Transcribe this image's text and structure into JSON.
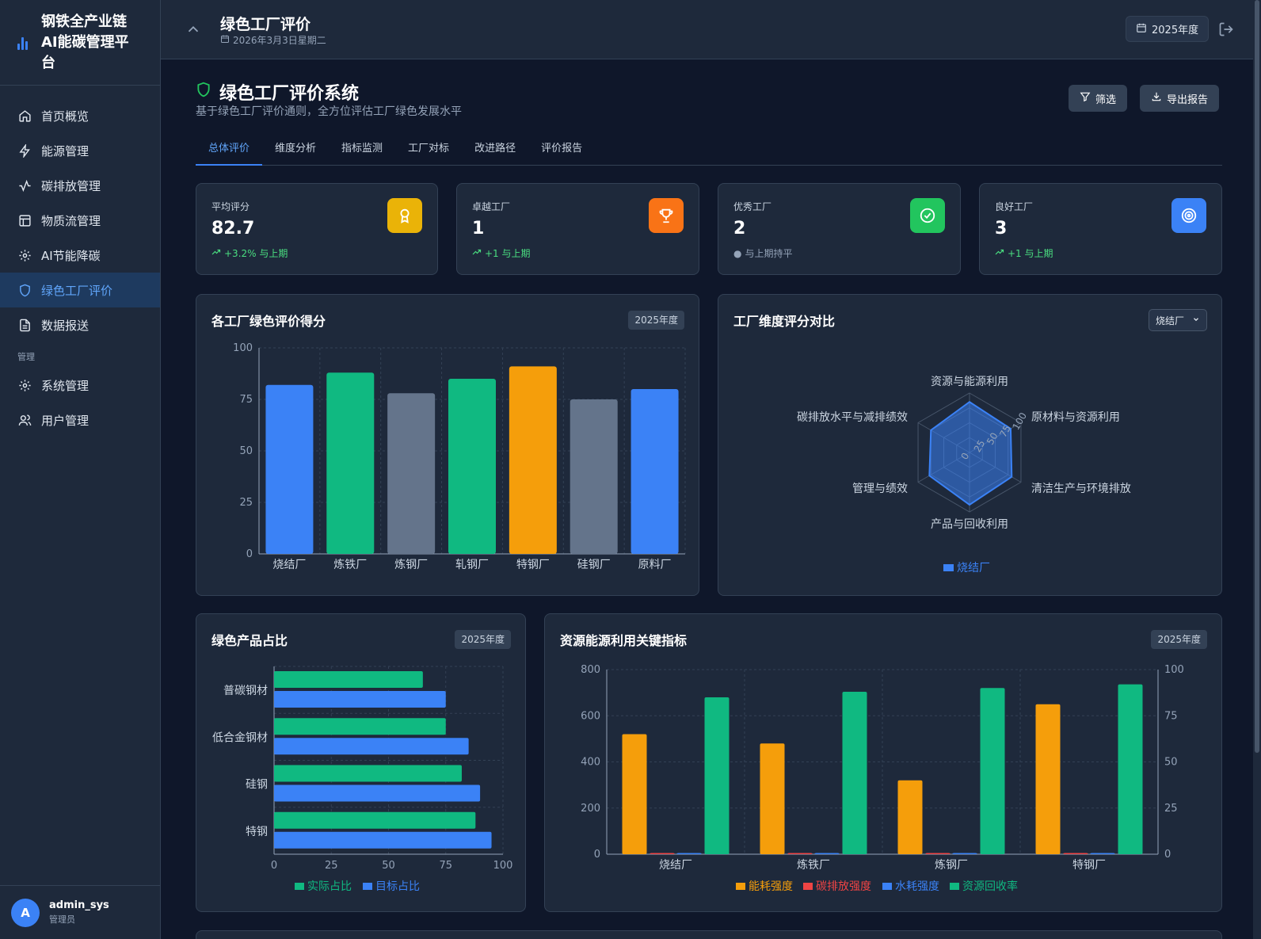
{
  "app": {
    "title": "钢铁全产业链AI能碳管理平台"
  },
  "sidebar": {
    "items": [
      {
        "label": "首页概览",
        "icon": "home-icon"
      },
      {
        "label": "能源管理",
        "icon": "bolt-icon"
      },
      {
        "label": "碳排放管理",
        "icon": "activity-icon"
      },
      {
        "label": "物质流管理",
        "icon": "layout-icon"
      },
      {
        "label": "AI节能降碳",
        "icon": "gear-icon"
      },
      {
        "label": "绿色工厂评价",
        "icon": "shield-icon"
      },
      {
        "label": "数据报送",
        "icon": "file-icon"
      }
    ],
    "section": "管理",
    "admin_items": [
      {
        "label": "系统管理",
        "icon": "gear-icon"
      },
      {
        "label": "用户管理",
        "icon": "users-icon"
      }
    ]
  },
  "user": {
    "initial": "A",
    "name": "admin_sys",
    "role": "管理员"
  },
  "topbar": {
    "title": "绿色工厂评价",
    "date": "2026年3月3日星期二",
    "year": "2025年度"
  },
  "header": {
    "title": "绿色工厂评价系统",
    "subtitle": "基于绿色工厂评价通则，全方位评估工厂绿色发展水平",
    "filter": "筛选",
    "export": "导出报告"
  },
  "tabs": [
    "总体评价",
    "维度分析",
    "指标监测",
    "工厂对标",
    "改进路径",
    "评价报告"
  ],
  "stats": [
    {
      "label": "平均评分",
      "value": "82.7",
      "trend": "+3.2% 与上期",
      "icon": "award-icon",
      "color": "#eab308"
    },
    {
      "label": "卓越工厂",
      "value": "1",
      "trend": "+1 与上期",
      "icon": "trophy-icon",
      "color": "#f97316"
    },
    {
      "label": "优秀工厂",
      "value": "2",
      "trend": "与上期持平",
      "icon": "check-circle-icon",
      "color": "#22c55e"
    },
    {
      "label": "良好工厂",
      "value": "3",
      "trend": "+1 与上期",
      "icon": "target-icon",
      "color": "#3b82f6"
    }
  ],
  "panels": {
    "scores": {
      "title": "各工厂绿色评价得分",
      "badge": "2025年度"
    },
    "radar": {
      "title": "工厂维度评分对比",
      "select": "烧结厂"
    },
    "products": {
      "title": "绿色产品占比",
      "badge": "2025年度"
    },
    "resources": {
      "title": "资源能源利用关键指标",
      "badge": "2025年度"
    }
  },
  "chart_data": [
    {
      "type": "bar",
      "categories": [
        "烧结厂",
        "炼铁厂",
        "炼钢厂",
        "轧钢厂",
        "特钢厂",
        "硅钢厂",
        "原料厂"
      ],
      "values": [
        82,
        88,
        78,
        85,
        91,
        75,
        80
      ],
      "colors": [
        "#3b82f6",
        "#10b981",
        "#64748b",
        "#10b981",
        "#f59e0b",
        "#64748b",
        "#3b82f6"
      ],
      "ylim": [
        0,
        100
      ],
      "yticks": [
        0,
        25,
        50,
        75,
        100
      ],
      "grid": true
    },
    {
      "type": "radar",
      "axes": [
        "资源与能源利用",
        "原材料与资源利用",
        "清洁生产与环境排放",
        "产品与回收利用",
        "管理与绩效",
        "碳排放水平与减排绩效"
      ],
      "series": [
        {
          "name": "烧结厂",
          "values": [
            85,
            80,
            82,
            88,
            78,
            75
          ]
        }
      ],
      "rticks": [
        0,
        25,
        50,
        75,
        100
      ],
      "color": "#3b82f6"
    },
    {
      "type": "bar",
      "orientation": "horizontal",
      "categories": [
        "普碳钢材",
        "低合金钢材",
        "硅钢",
        "特钢"
      ],
      "series": [
        {
          "name": "实际占比",
          "values": [
            65,
            75,
            82,
            88
          ],
          "color": "#10b981"
        },
        {
          "name": "目标占比",
          "values": [
            75,
            85,
            90,
            95
          ],
          "color": "#3b82f6"
        }
      ],
      "xlim": [
        0,
        100
      ],
      "xticks": [
        0,
        25,
        50,
        75,
        100
      ]
    },
    {
      "type": "bar",
      "categories": [
        "烧结厂",
        "炼铁厂",
        "炼钢厂",
        "特钢厂"
      ],
      "series": [
        {
          "name": "能耗强度",
          "values": [
            520,
            480,
            320,
            650
          ],
          "color": "#f59e0b",
          "axis": "left"
        },
        {
          "name": "碳排放强度",
          "values": [
            1.8,
            1.9,
            1.5,
            1.7
          ],
          "color": "#ef4444",
          "axis": "left"
        },
        {
          "name": "水耗强度",
          "values": [
            3.2,
            3.5,
            2.8,
            3.8
          ],
          "color": "#3b82f6",
          "axis": "left"
        },
        {
          "name": "资源回收率",
          "values": [
            85,
            88,
            90,
            92
          ],
          "color": "#10b981",
          "axis": "right"
        }
      ],
      "ylim_left": [
        0,
        800
      ],
      "yticks_left": [
        0,
        200,
        400,
        600,
        800
      ],
      "ylim_right": [
        0,
        100
      ],
      "yticks_right": [
        0,
        25,
        50,
        75,
        100
      ]
    }
  ]
}
